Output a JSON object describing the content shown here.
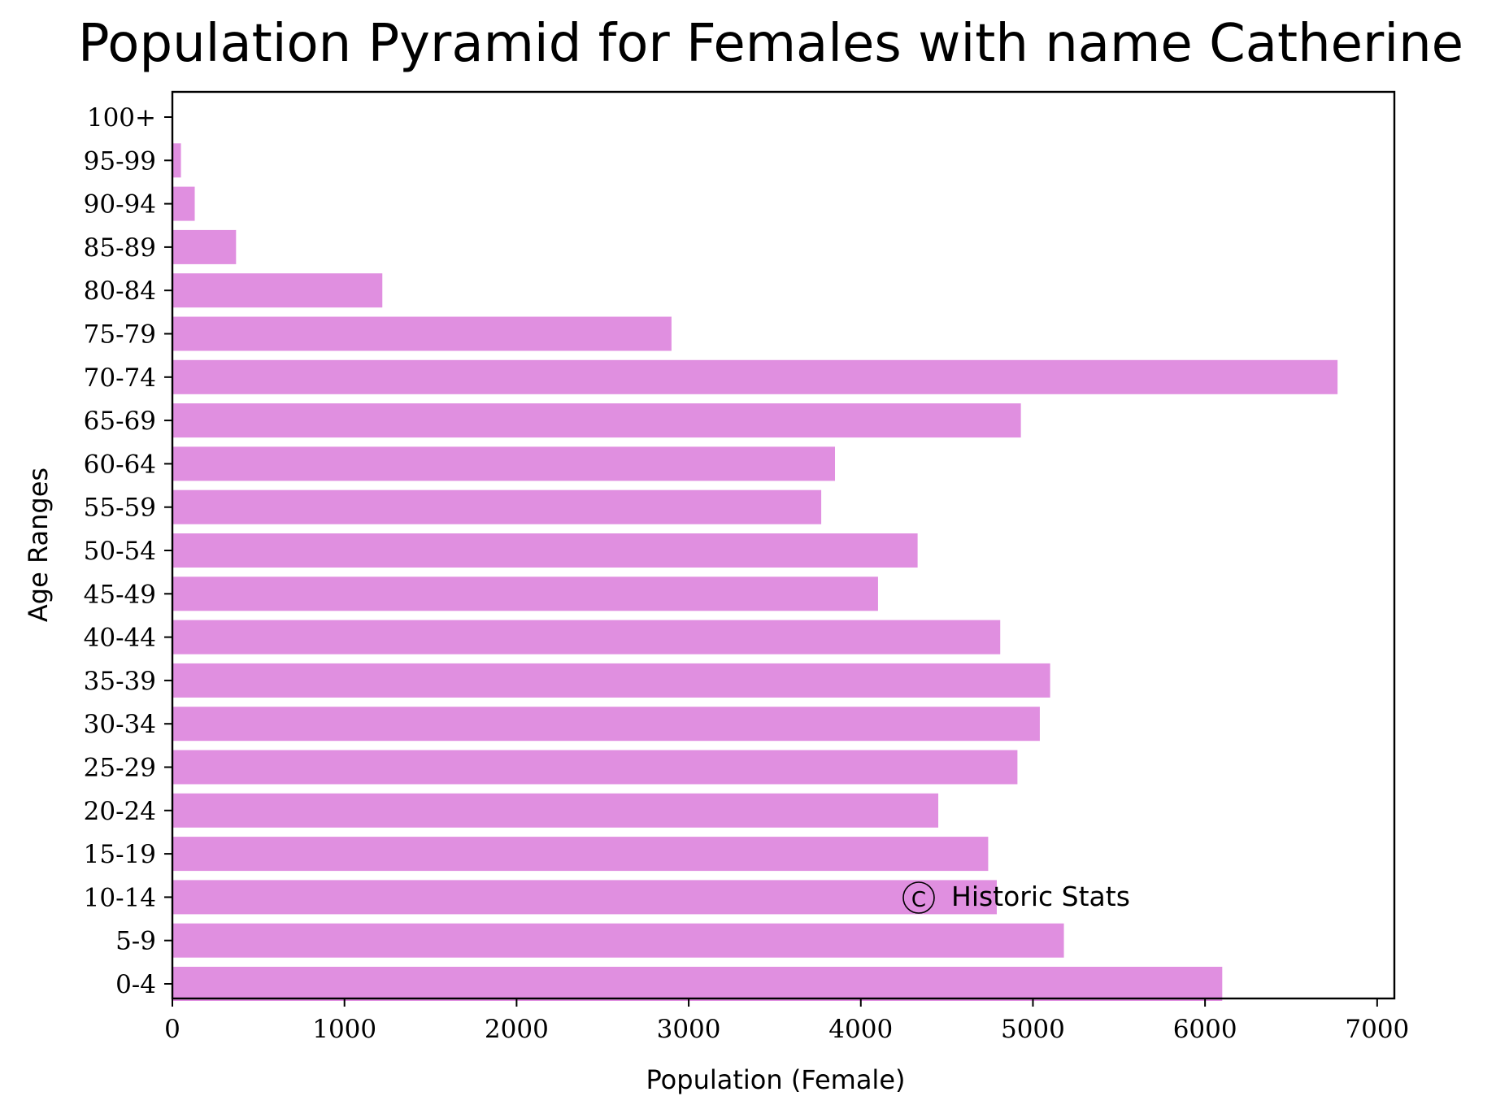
{
  "chart_data": {
    "type": "bar",
    "orientation": "horizontal",
    "title": "Population Pyramid for Females with name Catherine",
    "xlabel": "Population (Female)",
    "ylabel": "Age Ranges",
    "categories": [
      "100+",
      "95-99",
      "90-94",
      "85-89",
      "80-84",
      "75-79",
      "70-74",
      "65-69",
      "60-64",
      "55-59",
      "50-54",
      "45-49",
      "40-44",
      "35-39",
      "30-34",
      "25-29",
      "20-24",
      "15-19",
      "10-14",
      "5-9",
      "0-4"
    ],
    "values": [
      0,
      50,
      130,
      370,
      1220,
      2900,
      6770,
      4930,
      3850,
      3770,
      4330,
      4100,
      4810,
      5100,
      5040,
      4910,
      4450,
      4740,
      4790,
      5180,
      6100
    ],
    "xlim": [
      0,
      7100
    ],
    "xticks": [
      0,
      1000,
      2000,
      3000,
      4000,
      5000,
      6000,
      7000
    ],
    "xtick_labels": [
      "0",
      "1000",
      "2000",
      "3000",
      "4000",
      "5000",
      "6000",
      "7000"
    ],
    "bar_color": "#e08fe0",
    "grid": false,
    "watermark": "Historic Stats",
    "watermark_symbol": "C"
  }
}
